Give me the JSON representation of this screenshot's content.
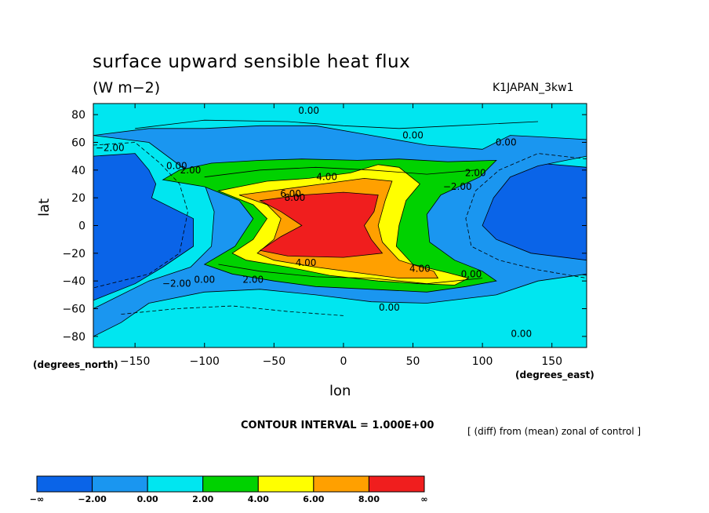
{
  "chart_data": {
    "type": "heatmap",
    "title": "surface upward sensible heat flux",
    "units": "(W m−2)",
    "run_id": "K1JAPAN_3kw1",
    "xlabel": "lon",
    "ylabel": "lat",
    "x_unit_label": "(degrees_east)",
    "y_unit_label": "(degrees_north)",
    "xlim": [
      -180,
      175
    ],
    "ylim": [
      -88,
      88
    ],
    "x_ticks": [
      -150,
      -100,
      -50,
      0,
      50,
      100,
      150
    ],
    "x_tick_labels": [
      "−150",
      "−100",
      "−50",
      "0",
      "50",
      "100",
      "150"
    ],
    "y_ticks": [
      80,
      60,
      40,
      20,
      0,
      -20,
      -40,
      -60,
      -80
    ],
    "y_tick_labels": [
      "80",
      "60",
      "40",
      "20",
      "0",
      "−20",
      "−40",
      "−60",
      "−80"
    ],
    "contour_interval_label": "CONTOUR INTERVAL = 1.000E+00",
    "note": "[ (diff) from (mean) zonal of control ]",
    "contour_labels": [
      {
        "text": "0.00",
        "lon": -25,
        "lat": 83
      },
      {
        "text": "0.00",
        "lon": 50,
        "lat": 65
      },
      {
        "text": "0.00",
        "lon": 117,
        "lat": 60
      },
      {
        "text": "−2.00",
        "lon": -168,
        "lat": 56
      },
      {
        "text": "0.00",
        "lon": -120,
        "lat": 43
      },
      {
        "text": "2.00",
        "lon": -110,
        "lat": 40
      },
      {
        "text": "4.00",
        "lon": -12,
        "lat": 35
      },
      {
        "text": "2.00",
        "lon": 95,
        "lat": 38
      },
      {
        "text": "−2.00",
        "lon": 82,
        "lat": 28
      },
      {
        "text": "6.00",
        "lon": -38,
        "lat": 23
      },
      {
        "text": "8.00",
        "lon": -35,
        "lat": 20
      },
      {
        "text": "4.00",
        "lon": -27,
        "lat": -27
      },
      {
        "text": "4.00",
        "lon": 55,
        "lat": -31
      },
      {
        "text": "0.00",
        "lon": 92,
        "lat": -35
      },
      {
        "text": "2.00",
        "lon": -65,
        "lat": -39
      },
      {
        "text": "0.00",
        "lon": -100,
        "lat": -39
      },
      {
        "text": "−2.00",
        "lon": -120,
        "lat": -42
      },
      {
        "text": "0.00",
        "lon": 33,
        "lat": -59
      },
      {
        "text": "0.00",
        "lon": 128,
        "lat": -78
      }
    ],
    "color_scale": {
      "levels": [
        "−∞",
        "−2.00",
        "0.00",
        "2.00",
        "4.00",
        "6.00",
        "8.00",
        "∞"
      ],
      "colors": [
        "#0a64e8",
        "#1a96f0",
        "#00e6f0",
        "#00d200",
        "#ffff00",
        "#ffa000",
        "#f01e1e"
      ]
    },
    "regions": [
      {
        "level": 0,
        "points": [
          [
            -180,
            50
          ],
          [
            -150,
            52
          ],
          [
            -140,
            40
          ],
          [
            -135,
            30
          ],
          [
            -138,
            20
          ],
          [
            -108,
            5
          ],
          [
            -108,
            -15
          ],
          [
            -130,
            -30
          ],
          [
            -150,
            -42
          ],
          [
            -180,
            -54
          ]
        ]
      },
      {
        "level": 0,
        "points": [
          [
            175,
            42
          ],
          [
            140,
            45
          ],
          [
            118,
            40
          ],
          [
            100,
            30
          ],
          [
            90,
            15
          ],
          [
            82,
            0
          ],
          [
            88,
            -15
          ],
          [
            108,
            -22
          ],
          [
            135,
            -30
          ],
          [
            175,
            -36
          ]
        ]
      },
      {
        "level": 1,
        "points": [
          [
            -180,
            65
          ],
          [
            -140,
            60
          ],
          [
            -120,
            45
          ],
          [
            -100,
            30
          ],
          [
            -93,
            10
          ],
          [
            -95,
            -15
          ],
          [
            -110,
            -30
          ],
          [
            -140,
            -40
          ],
          [
            -180,
            -60
          ],
          [
            -180,
            -80
          ],
          [
            -160,
            -70
          ],
          [
            -140,
            -56
          ],
          [
            -100,
            -48
          ],
          [
            -60,
            -46
          ],
          [
            -20,
            -50
          ],
          [
            20,
            -55
          ],
          [
            60,
            -56
          ],
          [
            110,
            -50
          ],
          [
            140,
            -40
          ],
          [
            175,
            -35
          ],
          [
            175,
            -25
          ],
          [
            135,
            -20
          ],
          [
            110,
            -10
          ],
          [
            100,
            0
          ],
          [
            108,
            20
          ],
          [
            120,
            35
          ],
          [
            140,
            43
          ],
          [
            175,
            50
          ],
          [
            175,
            62
          ],
          [
            140,
            64
          ],
          [
            120,
            65
          ],
          [
            100,
            55
          ],
          [
            60,
            58
          ],
          [
            20,
            65
          ],
          [
            -20,
            72
          ],
          [
            -60,
            72
          ],
          [
            -100,
            70
          ],
          [
            -140,
            70
          ]
        ]
      },
      {
        "level": 3,
        "points": [
          [
            -130,
            33
          ],
          [
            -118,
            40
          ],
          [
            -95,
            45
          ],
          [
            -60,
            47
          ],
          [
            -30,
            48
          ],
          [
            10,
            47
          ],
          [
            40,
            48
          ],
          [
            75,
            46
          ],
          [
            110,
            47
          ],
          [
            98,
            35
          ],
          [
            70,
            22
          ],
          [
            60,
            8
          ],
          [
            62,
            -12
          ],
          [
            80,
            -25
          ],
          [
            100,
            -33
          ],
          [
            110,
            -40
          ],
          [
            88,
            -44
          ],
          [
            60,
            -48
          ],
          [
            20,
            -46
          ],
          [
            -20,
            -44
          ],
          [
            -50,
            -40
          ],
          [
            -80,
            -35
          ],
          [
            -100,
            -28
          ],
          [
            -78,
            -15
          ],
          [
            -65,
            5
          ],
          [
            -75,
            18
          ],
          [
            -100,
            28
          ]
        ]
      },
      {
        "level": 4,
        "points": [
          [
            -90,
            25
          ],
          [
            -75,
            28
          ],
          [
            -55,
            32
          ],
          [
            -25,
            34
          ],
          [
            5,
            38
          ],
          [
            25,
            44
          ],
          [
            40,
            42
          ],
          [
            55,
            30
          ],
          [
            45,
            18
          ],
          [
            40,
            0
          ],
          [
            38,
            -15
          ],
          [
            50,
            -28
          ],
          [
            75,
            -34
          ],
          [
            90,
            -38
          ],
          [
            80,
            -43
          ],
          [
            55,
            -42
          ],
          [
            25,
            -40
          ],
          [
            -10,
            -36
          ],
          [
            -40,
            -30
          ],
          [
            -70,
            -25
          ],
          [
            -80,
            -20
          ],
          [
            -65,
            -10
          ],
          [
            -55,
            5
          ],
          [
            -65,
            15
          ]
        ]
      },
      {
        "level": 5,
        "points": [
          [
            -75,
            22
          ],
          [
            -45,
            26
          ],
          [
            -15,
            30
          ],
          [
            15,
            34
          ],
          [
            35,
            32
          ],
          [
            30,
            18
          ],
          [
            25,
            0
          ],
          [
            28,
            -12
          ],
          [
            40,
            -25
          ],
          [
            65,
            -33
          ],
          [
            68,
            -38
          ],
          [
            40,
            -38
          ],
          [
            10,
            -34
          ],
          [
            -20,
            -30
          ],
          [
            -50,
            -25
          ],
          [
            -62,
            -20
          ],
          [
            -50,
            -10
          ],
          [
            -45,
            5
          ],
          [
            -55,
            15
          ]
        ]
      },
      {
        "level": 6,
        "points": [
          [
            -60,
            18
          ],
          [
            -30,
            22
          ],
          [
            0,
            24
          ],
          [
            25,
            22
          ],
          [
            22,
            10
          ],
          [
            15,
            0
          ],
          [
            20,
            -10
          ],
          [
            28,
            -20
          ],
          [
            0,
            -23
          ],
          [
            -40,
            -22
          ],
          [
            -60,
            -18
          ],
          [
            -45,
            -8
          ],
          [
            -30,
            0
          ],
          [
            -45,
            10
          ]
        ]
      }
    ],
    "contour_lines": [
      {
        "style": "solid",
        "points": [
          [
            -100,
            35
          ],
          [
            -60,
            40
          ],
          [
            -20,
            42
          ],
          [
            20,
            40
          ],
          [
            60,
            37
          ],
          [
            95,
            40
          ]
        ]
      },
      {
        "style": "solid",
        "points": [
          [
            -90,
            -28
          ],
          [
            -60,
            -33
          ],
          [
            -20,
            -37
          ],
          [
            20,
            -38
          ],
          [
            60,
            -42
          ],
          [
            100,
            -38
          ]
        ]
      },
      {
        "style": "solid",
        "points": [
          [
            -150,
            70
          ],
          [
            -100,
            76
          ],
          [
            -40,
            75
          ],
          [
            0,
            72
          ],
          [
            40,
            70
          ],
          [
            80,
            72
          ],
          [
            140,
            75
          ]
        ]
      },
      {
        "style": "dashed",
        "points": [
          [
            -180,
            58
          ],
          [
            -150,
            60
          ],
          [
            -132,
            45
          ],
          [
            -118,
            30
          ],
          [
            -112,
            10
          ],
          [
            -118,
            -20
          ],
          [
            -140,
            -35
          ],
          [
            -180,
            -45
          ]
        ]
      },
      {
        "style": "dashed",
        "points": [
          [
            175,
            48
          ],
          [
            140,
            52
          ],
          [
            112,
            40
          ],
          [
            95,
            25
          ],
          [
            88,
            5
          ],
          [
            92,
            -15
          ],
          [
            112,
            -25
          ],
          [
            140,
            -32
          ],
          [
            175,
            -38
          ]
        ]
      },
      {
        "style": "dashed",
        "points": [
          [
            -160,
            -64
          ],
          [
            -120,
            -60
          ],
          [
            -80,
            -58
          ],
          [
            -40,
            -62
          ],
          [
            0,
            -65
          ]
        ]
      }
    ]
  }
}
